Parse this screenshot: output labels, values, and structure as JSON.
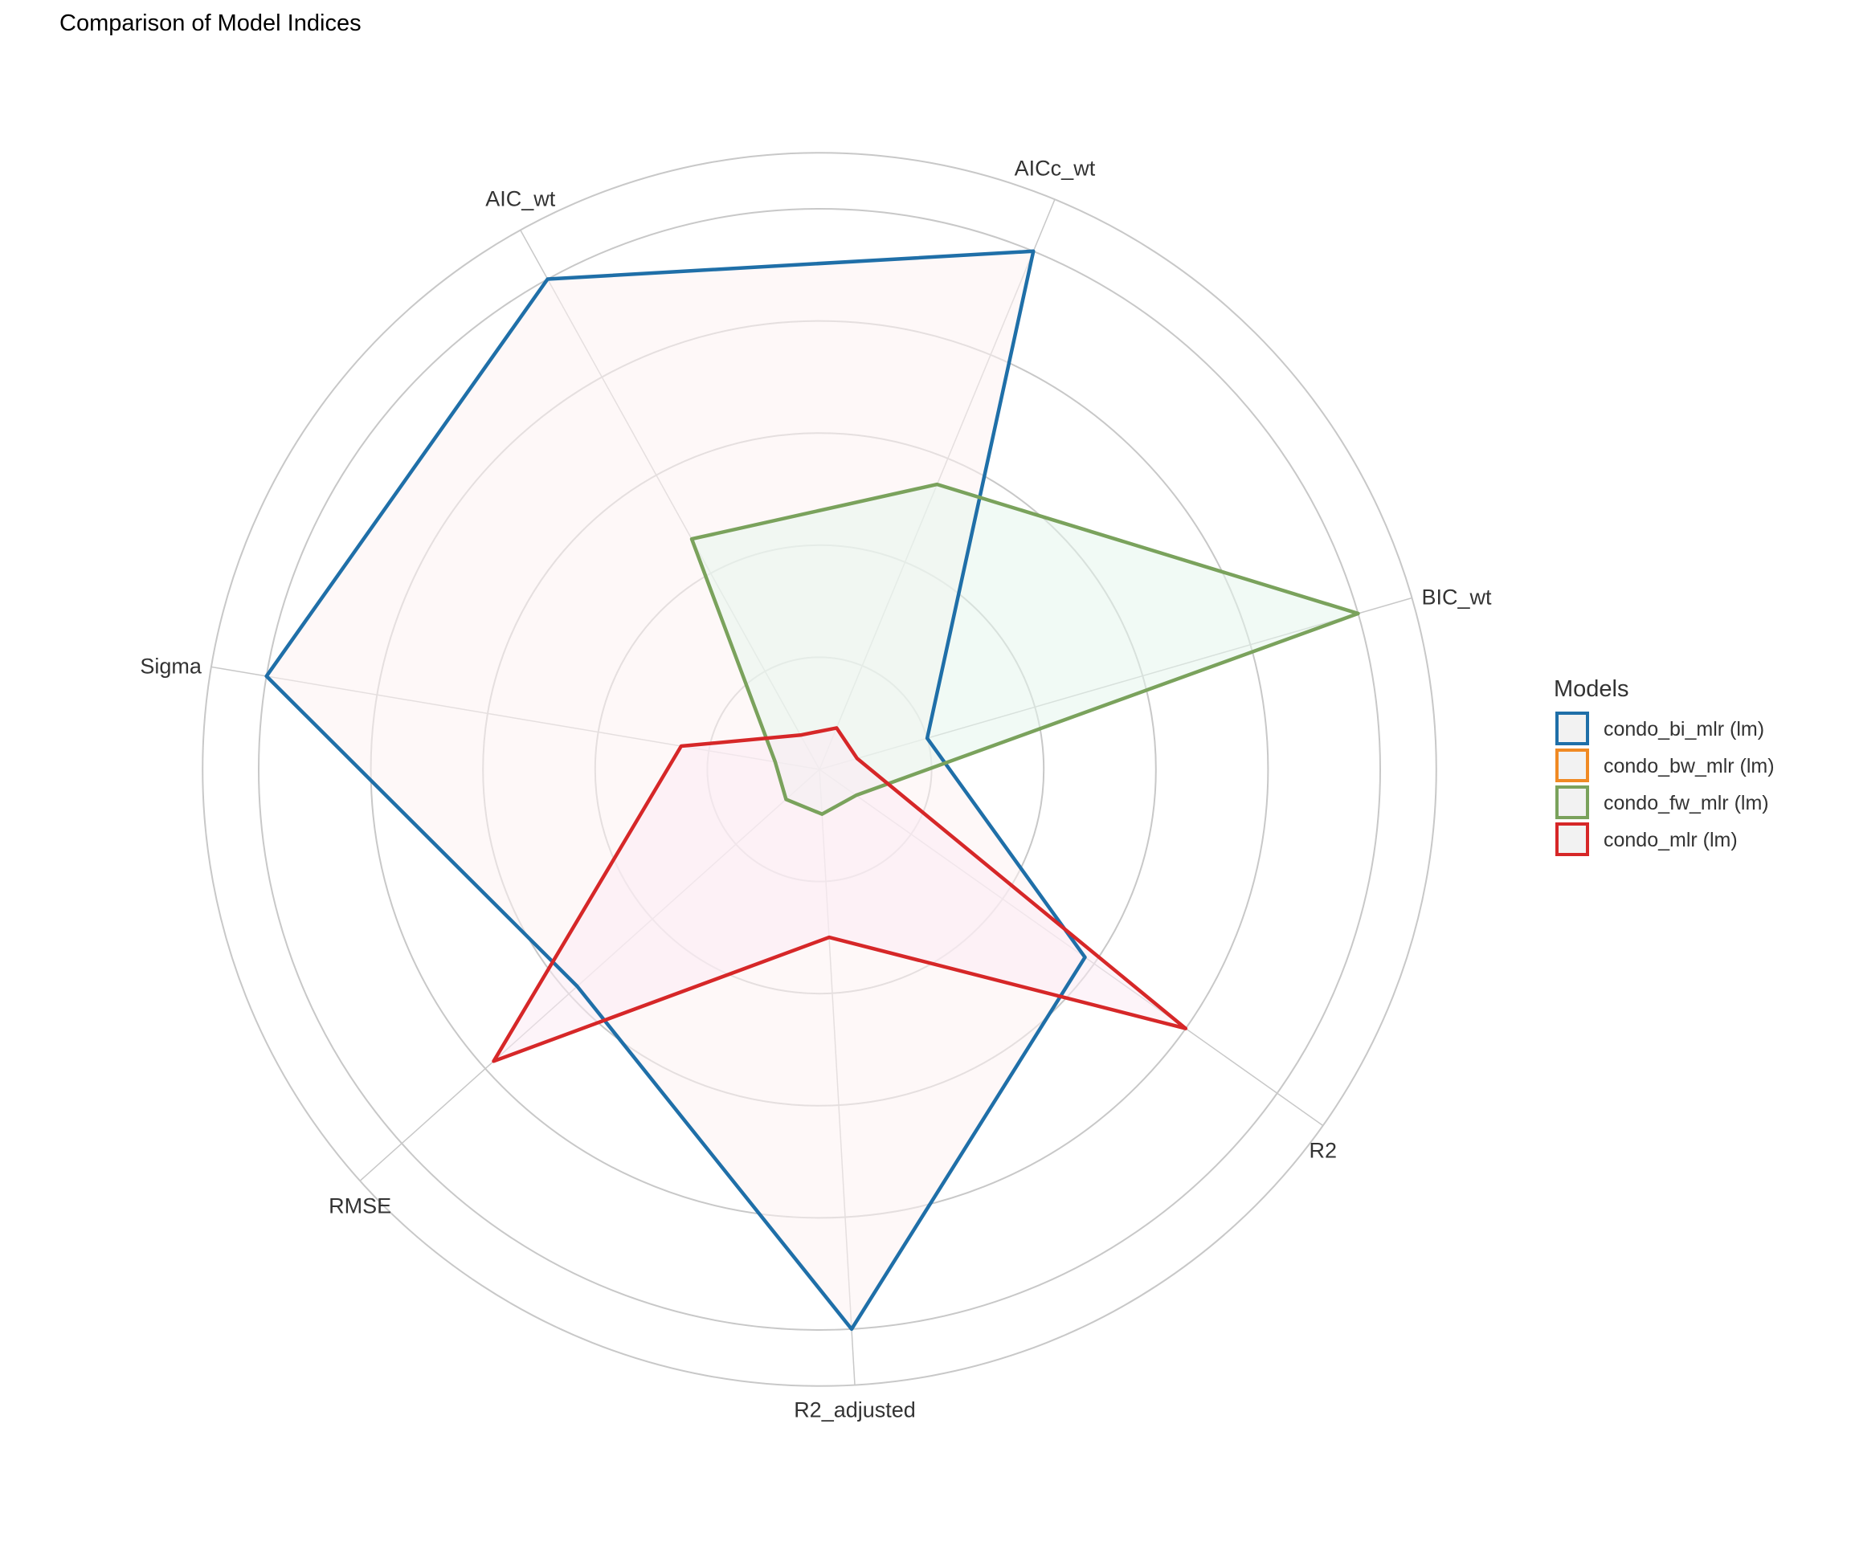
{
  "chart_data": {
    "type": "radar",
    "title": "Comparison of Model Indices",
    "axes": [
      "AIC_wt",
      "AICc_wt",
      "BIC_wt",
      "R2",
      "R2_adjusted",
      "RMSE",
      "Sigma"
    ],
    "rlim": [
      0,
      1
    ],
    "grid": true,
    "grid_rings": [
      0.2,
      0.4,
      0.6,
      0.8,
      1.0,
      1.1
    ],
    "legend": {
      "title": "Models",
      "position": "right"
    },
    "series": [
      {
        "name": "condo_bi_mlr (lm)",
        "color": "#1F6FA8",
        "fill": "#FDF3F3",
        "values": [
          1.0,
          1.0,
          0.2,
          0.58,
          1.0,
          0.58,
          1.0
        ]
      },
      {
        "name": "condo_bw_mlr (lm)",
        "color": "#F08A24",
        "fill": "#FDF3F3",
        "values": [
          0.0,
          0.0,
          0.0,
          0.0,
          0.0,
          0.0,
          0.0
        ]
      },
      {
        "name": "condo_fw_mlr (lm)",
        "color": "#7AA25C",
        "fill": "#E6F5EC",
        "values": [
          0.47,
          0.55,
          1.0,
          0.08,
          0.08,
          0.08,
          0.08
        ]
      },
      {
        "name": "condo_mlr (lm)",
        "color": "#D62728",
        "fill": "#FCEBF4",
        "values": [
          0.07,
          0.08,
          0.07,
          0.8,
          0.3,
          0.78,
          0.25
        ]
      }
    ]
  }
}
